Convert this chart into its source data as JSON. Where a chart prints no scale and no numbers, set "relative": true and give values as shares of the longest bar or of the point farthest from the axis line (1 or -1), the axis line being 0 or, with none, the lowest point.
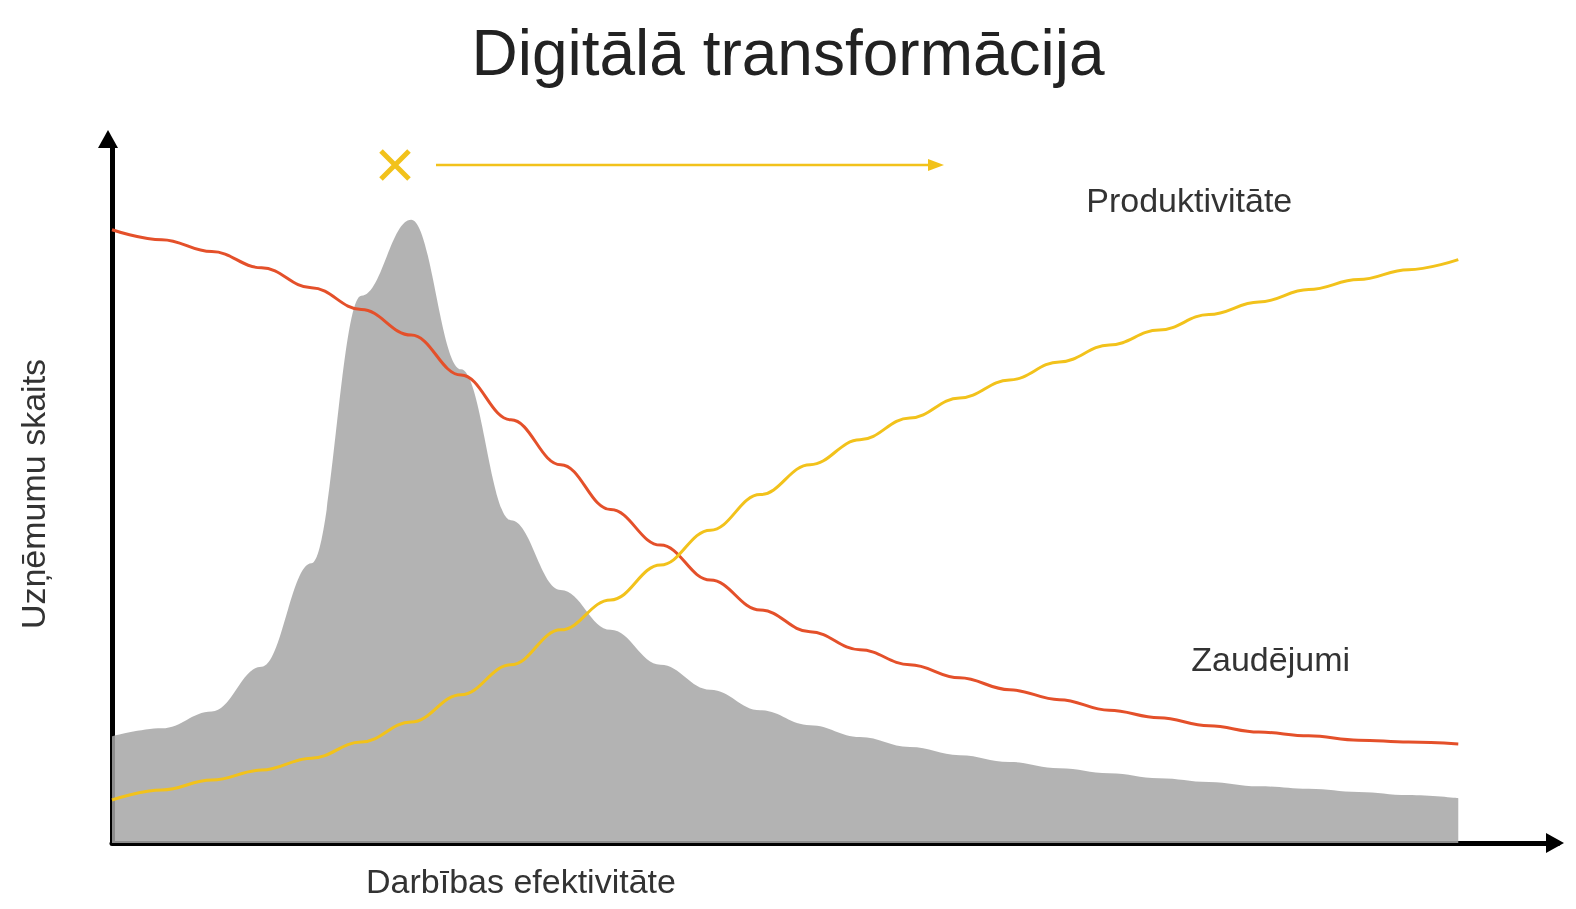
{
  "chart_data": {
    "type": "line",
    "title": "Digitālā transformācija",
    "xlabel": "Darbības efektivitāte",
    "ylabel": "Uzņēmumu skaits",
    "relative": true,
    "marker": "none",
    "categories": [
      null,
      null,
      null,
      null,
      null,
      null,
      null,
      null,
      null,
      null,
      null,
      null,
      null,
      null,
      null,
      null,
      null,
      null,
      null,
      null,
      null,
      null,
      null,
      null,
      null,
      null,
      null,
      null,
      null,
      null
    ],
    "series": [
      {
        "type": "area",
        "color": "#a6a6a6",
        "values": [
          0.171,
          0.184,
          0.211,
          0.283,
          0.449,
          0.878,
          1,
          0.76,
          0.518,
          0.406,
          0.342,
          0.286,
          0.246,
          0.213,
          0.189,
          0.17,
          0.154,
          0.141,
          0.13,
          0.12,
          0.112,
          0.104,
          0.098,
          0.091,
          0.087,
          0.082,
          0.077,
          0.072,
          null,
          null
        ]
      },
      {
        "type": "line",
        "name": "Zaudējumi",
        "color": "#e4502a",
        "values": [
          0.984,
          0.968,
          0.949,
          0.923,
          0.891,
          0.856,
          0.815,
          0.751,
          0.679,
          0.607,
          0.535,
          0.478,
          0.422,
          0.374,
          0.339,
          0.31,
          0.286,
          0.265,
          0.246,
          0.23,
          0.213,
          0.201,
          0.188,
          0.178,
          0.172,
          0.165,
          0.162,
          0.159,
          null,
          null
        ]
      },
      {
        "type": "line",
        "name": "Produktivitāte",
        "color": "#f2c21b",
        "values": [
          0.069,
          0.085,
          0.101,
          0.117,
          0.136,
          0.162,
          0.194,
          0.238,
          0.286,
          0.342,
          0.39,
          0.446,
          0.502,
          0.559,
          0.607,
          0.647,
          0.682,
          0.714,
          0.743,
          0.772,
          0.799,
          0.823,
          0.848,
          0.868,
          0.888,
          0.904,
          0.92,
          0.936,
          null,
          null
        ]
      }
    ]
  }
}
